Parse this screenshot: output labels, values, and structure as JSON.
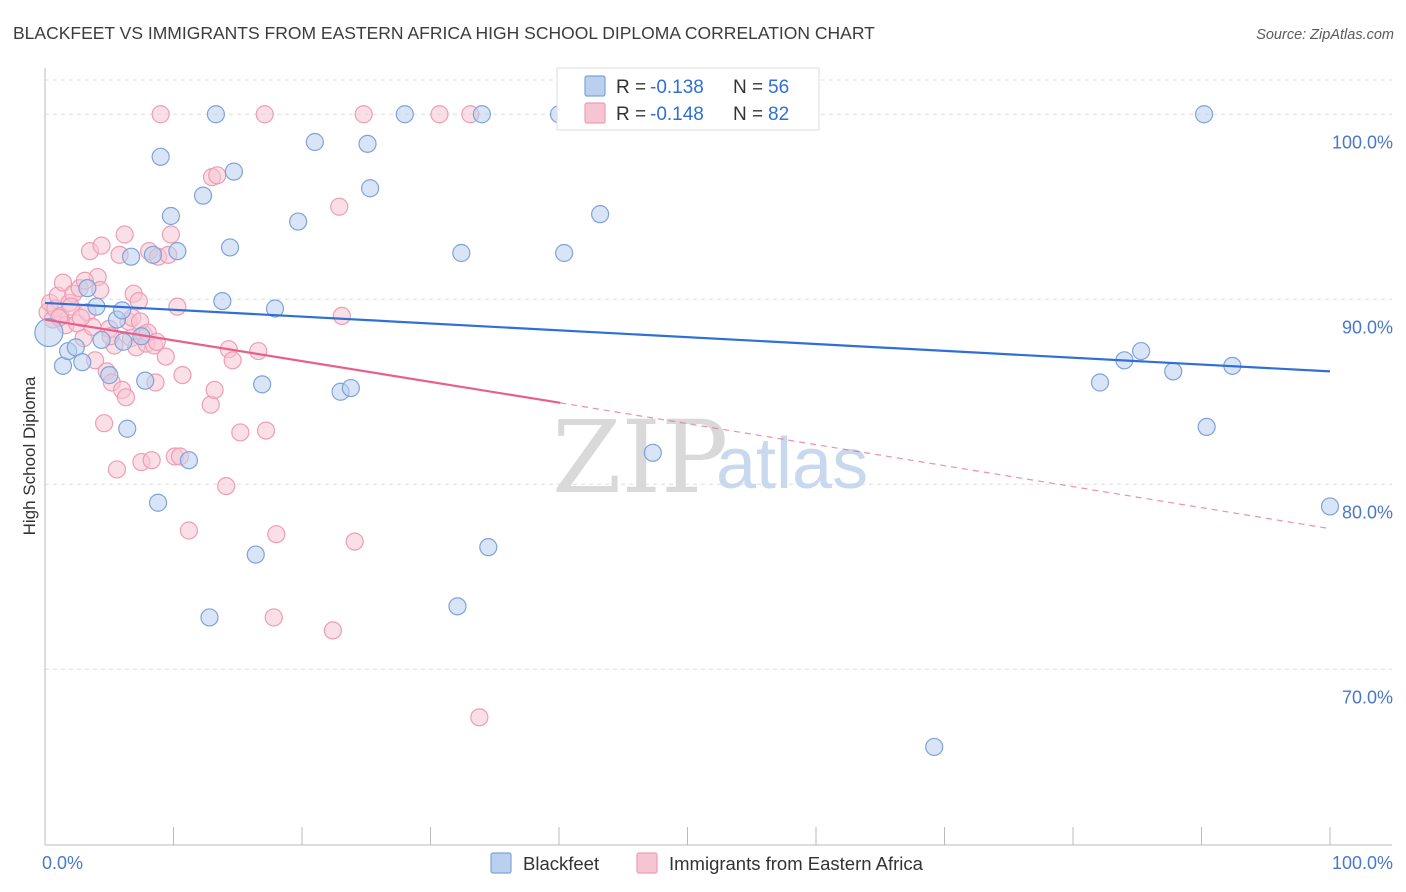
{
  "title": "BLACKFEET VS IMMIGRANTS FROM EASTERN AFRICA HIGH SCHOOL DIPLOMA CORRELATION CHART",
  "source": "Source: ZipAtlas.com",
  "watermark": {
    "zip": "ZIP",
    "atlas": "atlas"
  },
  "legend_box": {
    "rows": [
      {
        "r_label": "R =",
        "r_value": "-0.138",
        "n_label": "N =",
        "n_value": "56"
      },
      {
        "r_label": "R =",
        "r_value": "-0.148",
        "n_label": "N =",
        "n_value": "82"
      }
    ]
  },
  "bottom_legend": [
    "Blackfeet",
    "Immigrants from Eastern Africa"
  ],
  "colors": {
    "blackfeet_fill": "#b9d0ef",
    "blackfeet_stroke": "#7ea3d9",
    "blackfeet_line": "#2f6fd6",
    "eafrica_fill": "#f6c5d4",
    "eafrica_stroke": "#ee9db5",
    "eafrica_line": "#e8608a",
    "grid": "#dddddd",
    "axis": "#bbbbbb"
  },
  "chart_data": {
    "type": "scatter",
    "title": "BLACKFEET VS IMMIGRANTS FROM EASTERN AFRICA HIGH SCHOOL DIPLOMA CORRELATION CHART",
    "xlabel": "",
    "ylabel": "High School Diploma",
    "xlim": [
      0,
      100
    ],
    "ylim": [
      60.5,
      102.5
    ],
    "x_tick_labels": [
      "0.0%",
      "100.0%"
    ],
    "y_ticks": [
      70,
      80,
      90,
      100
    ],
    "y_tick_labels": [
      "70.0%",
      "80.0%",
      "90.0%",
      "100.0%"
    ],
    "grid": true,
    "legend_position": "top-center",
    "series": [
      {
        "name": "Blackfeet",
        "r": -0.138,
        "n": 56,
        "trend": {
          "x": [
            0,
            100
          ],
          "y": [
            89.8,
            86.1
          ]
        },
        "points": [
          [
            0.3,
            88.2
          ],
          [
            1.4,
            86.4
          ],
          [
            1.8,
            87.2
          ],
          [
            2.4,
            87.4
          ],
          [
            2.9,
            86.6
          ],
          [
            3.3,
            90.6
          ],
          [
            4.0,
            89.6
          ],
          [
            4.4,
            87.8
          ],
          [
            5.0,
            85.9
          ],
          [
            5.6,
            88.9
          ],
          [
            6.0,
            89.4
          ],
          [
            6.4,
            83.0
          ],
          [
            6.7,
            92.3
          ],
          [
            7.5,
            88.0
          ],
          [
            7.8,
            85.6
          ],
          [
            8.4,
            92.4
          ],
          [
            8.8,
            79.0
          ],
          [
            9.0,
            97.7
          ],
          [
            9.8,
            94.5
          ],
          [
            10.3,
            92.6
          ],
          [
            11.2,
            81.3
          ],
          [
            12.3,
            95.6
          ],
          [
            12.8,
            72.8
          ],
          [
            13.3,
            100.0
          ],
          [
            13.8,
            89.9
          ],
          [
            14.4,
            92.8
          ],
          [
            14.7,
            96.9
          ],
          [
            16.4,
            76.2
          ],
          [
            16.9,
            85.4
          ],
          [
            17.9,
            89.5
          ],
          [
            19.7,
            94.2
          ],
          [
            21.0,
            98.5
          ],
          [
            23.0,
            85.0
          ],
          [
            23.8,
            85.2
          ],
          [
            25.1,
            98.4
          ],
          [
            25.3,
            96.0
          ],
          [
            28.0,
            100.0
          ],
          [
            32.1,
            73.4
          ],
          [
            32.4,
            92.5
          ],
          [
            34.0,
            100.0
          ],
          [
            34.5,
            76.6
          ],
          [
            40.0,
            100.0
          ],
          [
            40.4,
            92.5
          ],
          [
            43.2,
            94.6
          ],
          [
            47.1,
            100.0
          ],
          [
            47.3,
            81.7
          ],
          [
            69.2,
            65.8
          ],
          [
            82.1,
            85.5
          ],
          [
            84.0,
            86.7
          ],
          [
            85.3,
            87.2
          ],
          [
            87.8,
            86.1
          ],
          [
            90.2,
            100.0
          ],
          [
            90.4,
            83.1
          ],
          [
            92.4,
            86.4
          ],
          [
            100.0,
            78.8
          ],
          [
            6.1,
            87.7
          ]
        ]
      },
      {
        "name": "Immigrants from Eastern Africa",
        "r": -0.148,
        "n": 82,
        "trend_solid": {
          "x": [
            0,
            40.1
          ],
          "y": [
            88.9,
            84.4
          ]
        },
        "trend_dashed": {
          "x": [
            40.1,
            100
          ],
          "y": [
            84.4,
            77.6
          ]
        },
        "points": [
          [
            0.2,
            89.3
          ],
          [
            0.4,
            89.8
          ],
          [
            0.6,
            88.9
          ],
          [
            0.8,
            89.5
          ],
          [
            1.0,
            90.2
          ],
          [
            1.2,
            89.1
          ],
          [
            1.4,
            90.9
          ],
          [
            1.6,
            88.6
          ],
          [
            1.9,
            89.8
          ],
          [
            2.2,
            90.3
          ],
          [
            2.5,
            88.7
          ],
          [
            2.7,
            90.6
          ],
          [
            3.0,
            87.9
          ],
          [
            3.3,
            89.3
          ],
          [
            3.5,
            92.6
          ],
          [
            3.7,
            88.5
          ],
          [
            3.9,
            86.7
          ],
          [
            4.1,
            91.2
          ],
          [
            4.3,
            90.5
          ],
          [
            4.4,
            92.9
          ],
          [
            4.6,
            83.3
          ],
          [
            4.8,
            86.1
          ],
          [
            5.0,
            88.4
          ],
          [
            5.2,
            85.5
          ],
          [
            5.4,
            87.5
          ],
          [
            5.6,
            80.8
          ],
          [
            5.8,
            92.4
          ],
          [
            6.0,
            85.1
          ],
          [
            6.2,
            93.5
          ],
          [
            6.3,
            84.7
          ],
          [
            6.5,
            88.8
          ],
          [
            6.7,
            87.9
          ],
          [
            6.9,
            90.3
          ],
          [
            7.1,
            87.4
          ],
          [
            7.3,
            89.9
          ],
          [
            7.5,
            81.2
          ],
          [
            7.7,
            88.1
          ],
          [
            7.9,
            87.6
          ],
          [
            8.1,
            92.6
          ],
          [
            8.3,
            81.3
          ],
          [
            8.5,
            87.5
          ],
          [
            8.6,
            85.5
          ],
          [
            8.8,
            92.3
          ],
          [
            9.0,
            100.0
          ],
          [
            9.4,
            86.9
          ],
          [
            9.6,
            92.4
          ],
          [
            9.8,
            93.5
          ],
          [
            10.1,
            81.5
          ],
          [
            10.3,
            89.6
          ],
          [
            10.5,
            81.5
          ],
          [
            10.7,
            85.9
          ],
          [
            11.2,
            77.5
          ],
          [
            12.9,
            84.3
          ],
          [
            13.2,
            85.1
          ],
          [
            13.0,
            96.6
          ],
          [
            13.4,
            96.7
          ],
          [
            14.1,
            79.9
          ],
          [
            14.3,
            87.3
          ],
          [
            14.6,
            86.7
          ],
          [
            15.2,
            82.8
          ],
          [
            16.6,
            87.2
          ],
          [
            17.1,
            100.0
          ],
          [
            17.2,
            82.9
          ],
          [
            17.8,
            72.8
          ],
          [
            18.0,
            77.3
          ],
          [
            22.4,
            72.1
          ],
          [
            22.9,
            95.0
          ],
          [
            23.1,
            89.1
          ],
          [
            24.1,
            76.9
          ],
          [
            24.8,
            100.0
          ],
          [
            30.7,
            100.0
          ],
          [
            33.1,
            100.0
          ],
          [
            33.8,
            67.4
          ],
          [
            2.0,
            89.6
          ],
          [
            2.8,
            89.0
          ],
          [
            3.1,
            91.0
          ],
          [
            5.1,
            88.0
          ],
          [
            6.8,
            89.0
          ],
          [
            7.4,
            88.8
          ],
          [
            8.0,
            88.2
          ],
          [
            8.7,
            87.7
          ],
          [
            1.1,
            89.0
          ]
        ]
      }
    ]
  }
}
